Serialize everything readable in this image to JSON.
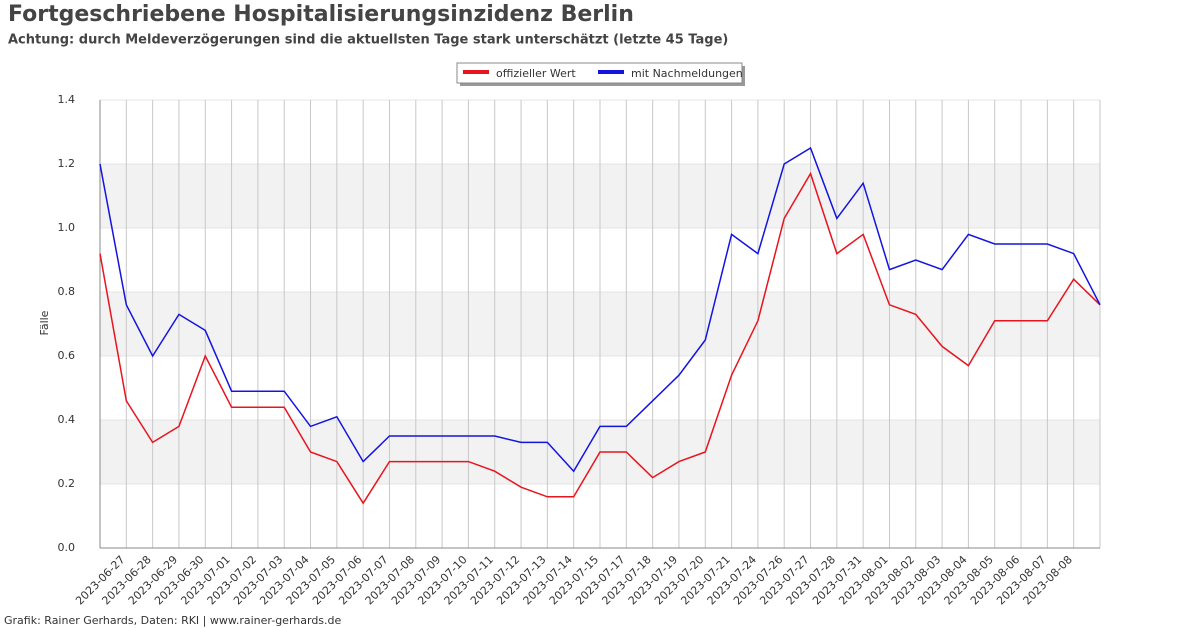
{
  "chart_data": {
    "type": "line",
    "title": "Fortgeschriebene Hospitalisierungsinzidenz Berlin",
    "subtitle": "Achtung: durch Meldeverzögerungen sind die aktuellsten Tage stark unterschätzt (letzte 45 Tage)",
    "y_label": "Fälle",
    "footer": "Grafik: Rainer Gerhards, Daten: RKI | www.rainer-gerhards.de",
    "categories": [
      null,
      "2023-06-27",
      "2023-06-28",
      "2023-06-29",
      "2023-06-30",
      "2023-07-01",
      "2023-07-02",
      "2023-07-03",
      "2023-07-04",
      "2023-07-05",
      "2023-07-06",
      "2023-07-07",
      "2023-07-08",
      "2023-07-09",
      "2023-07-10",
      "2023-07-11",
      "2023-07-12",
      "2023-07-13",
      "2023-07-14",
      "2023-07-15",
      "2023-07-17",
      "2023-07-18",
      "2023-07-19",
      "2023-07-20",
      "2023-07-21",
      "2023-07-24",
      "2023-07-26",
      "2023-07-27",
      "2023-07-28",
      "2023-07-31",
      "2023-08-01",
      "2023-08-02",
      "2023-08-03",
      "2023-08-04",
      "2023-08-05",
      "2023-08-06",
      "2023-08-07",
      "2023-08-08",
      null
    ],
    "series": [
      {
        "name": "offizieller Wert",
        "color": "#e8141e",
        "values": [
          0.92,
          0.46,
          0.33,
          0.38,
          0.6,
          0.44,
          0.44,
          0.44,
          0.3,
          0.27,
          0.14,
          0.27,
          0.27,
          0.27,
          0.27,
          0.24,
          0.19,
          0.16,
          0.16,
          0.3,
          0.3,
          0.22,
          0.27,
          0.3,
          0.54,
          0.71,
          1.03,
          1.17,
          0.92,
          0.98,
          0.76,
          0.73,
          0.63,
          0.57,
          0.71,
          0.71,
          0.71,
          0.84,
          0.76
        ]
      },
      {
        "name": "mit Nachmeldungen",
        "color": "#1414e0",
        "values": [
          1.2,
          0.76,
          0.6,
          0.73,
          0.68,
          0.49,
          0.49,
          0.49,
          0.38,
          0.41,
          0.27,
          0.35,
          0.35,
          0.35,
          0.35,
          0.35,
          0.33,
          0.33,
          0.24,
          0.38,
          0.38,
          0.46,
          0.54,
          0.65,
          0.98,
          0.92,
          1.2,
          1.25,
          1.03,
          1.14,
          0.87,
          0.9,
          0.87,
          0.98,
          0.95,
          0.95,
          0.95,
          0.92,
          0.76
        ]
      }
    ],
    "ylim": [
      0,
      1.4
    ],
    "yticks": [
      {
        "value": 0,
        "label": "0.0"
      },
      0.2,
      0.4,
      0.6,
      0.8,
      {
        "value": 1,
        "label": "1.0"
      },
      1.2,
      1.4
    ],
    "grid": true,
    "legend": "top"
  }
}
